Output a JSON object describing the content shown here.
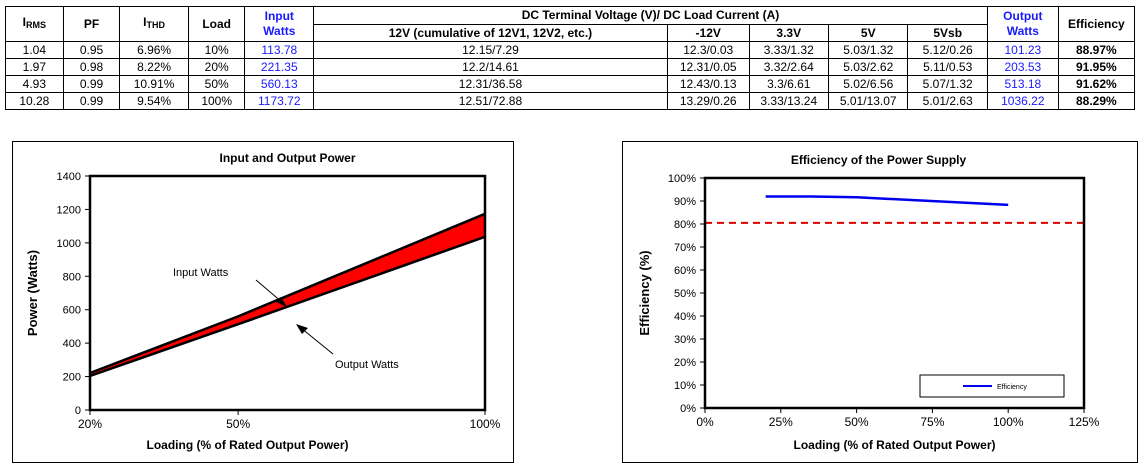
{
  "table": {
    "headers": {
      "irms_main": "I",
      "irms_sub": "RMS",
      "pf": "PF",
      "ithd_main": "I",
      "ithd_sub": "THD",
      "load": "Load",
      "input_watts": "Input Watts",
      "dc_group": "DC Terminal Voltage (V)/ DC Load Current (A)",
      "col_12v": "12V (cumulative of 12V1, 12V2, etc.)",
      "col_m12v": "-12V",
      "col_3v3": "3.3V",
      "col_5v": "5V",
      "col_5vsb": "5Vsb",
      "output_watts": "Output Watts",
      "efficiency": "Efficiency"
    },
    "rows": [
      {
        "irms": "1.04",
        "pf": "0.95",
        "ithd": "6.96%",
        "load": "10%",
        "input": "113.78",
        "v12": "12.15/7.29",
        "vm12": "12.3/0.03",
        "v3": "3.33/1.32",
        "v5": "5.03/1.32",
        "v5sb": "5.12/0.26",
        "output": "101.23",
        "eff": "88.97%"
      },
      {
        "irms": "1.97",
        "pf": "0.98",
        "ithd": "8.22%",
        "load": "20%",
        "input": "221.35",
        "v12": "12.2/14.61",
        "vm12": "12.31/0.05",
        "v3": "3.32/2.64",
        "v5": "5.03/2.62",
        "v5sb": "5.11/0.53",
        "output": "203.53",
        "eff": "91.95%"
      },
      {
        "irms": "4.93",
        "pf": "0.99",
        "ithd": "10.91%",
        "load": "50%",
        "input": "560.13",
        "v12": "12.31/36.58",
        "vm12": "12.43/0.13",
        "v3": "3.3/6.61",
        "v5": "5.02/6.56",
        "v5sb": "5.07/1.32",
        "output": "513.18",
        "eff": "91.62%"
      },
      {
        "irms": "10.28",
        "pf": "0.99",
        "ithd": "9.54%",
        "load": "100%",
        "input": "1173.72",
        "v12": "12.51/72.88",
        "vm12": "13.29/0.26",
        "v3": "3.33/13.24",
        "v5": "5.01/13.07",
        "v5sb": "5.01/2.63",
        "output": "1036.22",
        "eff": "88.29%"
      }
    ]
  },
  "chart_data": [
    {
      "type": "area",
      "title": "Input and Output Power",
      "xlabel": "Loading (% of Rated Output Power)",
      "ylabel": "Power (Watts)",
      "xlim": [
        20,
        100
      ],
      "ylim": [
        0,
        1400
      ],
      "xticks": [
        20,
        50,
        100
      ],
      "xtick_labels": [
        "20%",
        "50%",
        "100%"
      ],
      "yticks": [
        0,
        200,
        400,
        600,
        800,
        1000,
        1200,
        1400
      ],
      "ytick_labels": [
        "0",
        "200",
        "400",
        "600",
        "800",
        "1000",
        "1200",
        "1400"
      ],
      "x": [
        20,
        50,
        100
      ],
      "series": [
        {
          "name": "Input Watts",
          "values": [
            221.35,
            560.13,
            1173.72
          ]
        },
        {
          "name": "Output Watts",
          "values": [
            203.53,
            513.18,
            1036.22
          ]
        }
      ],
      "fill_color": "#ff0000",
      "annotations": [
        {
          "text": "Input Watts",
          "series": "Input Watts"
        },
        {
          "text": "Output Watts",
          "series": "Output Watts"
        }
      ],
      "grid": false
    },
    {
      "type": "line",
      "title": "Efficiency of the Power Supply",
      "xlabel": "Loading (% of Rated Output Power)",
      "ylabel": "Efficiency (%)",
      "xlim": [
        0,
        125
      ],
      "ylim": [
        0,
        100
      ],
      "xticks": [
        0,
        25,
        50,
        75,
        100,
        125
      ],
      "xtick_labels": [
        "0%",
        "25%",
        "50%",
        "75%",
        "100%",
        "125%"
      ],
      "yticks": [
        0,
        10,
        20,
        30,
        40,
        50,
        60,
        70,
        80,
        90,
        100
      ],
      "ytick_labels": [
        "0%",
        "10%",
        "20%",
        "30%",
        "40%",
        "50%",
        "60%",
        "70%",
        "80%",
        "90%",
        "100%"
      ],
      "x": [
        20,
        35,
        50,
        100
      ],
      "series": [
        {
          "name": "Efficiency",
          "values": [
            91.95,
            91.95,
            91.62,
            88.29
          ],
          "color": "#0000ee"
        }
      ],
      "reference_line": {
        "y": 80.5,
        "color": "#dd0000",
        "style": "dashed"
      },
      "legend": {
        "position": "bottom-right",
        "entries": [
          "Efficiency"
        ]
      },
      "grid": false
    }
  ]
}
